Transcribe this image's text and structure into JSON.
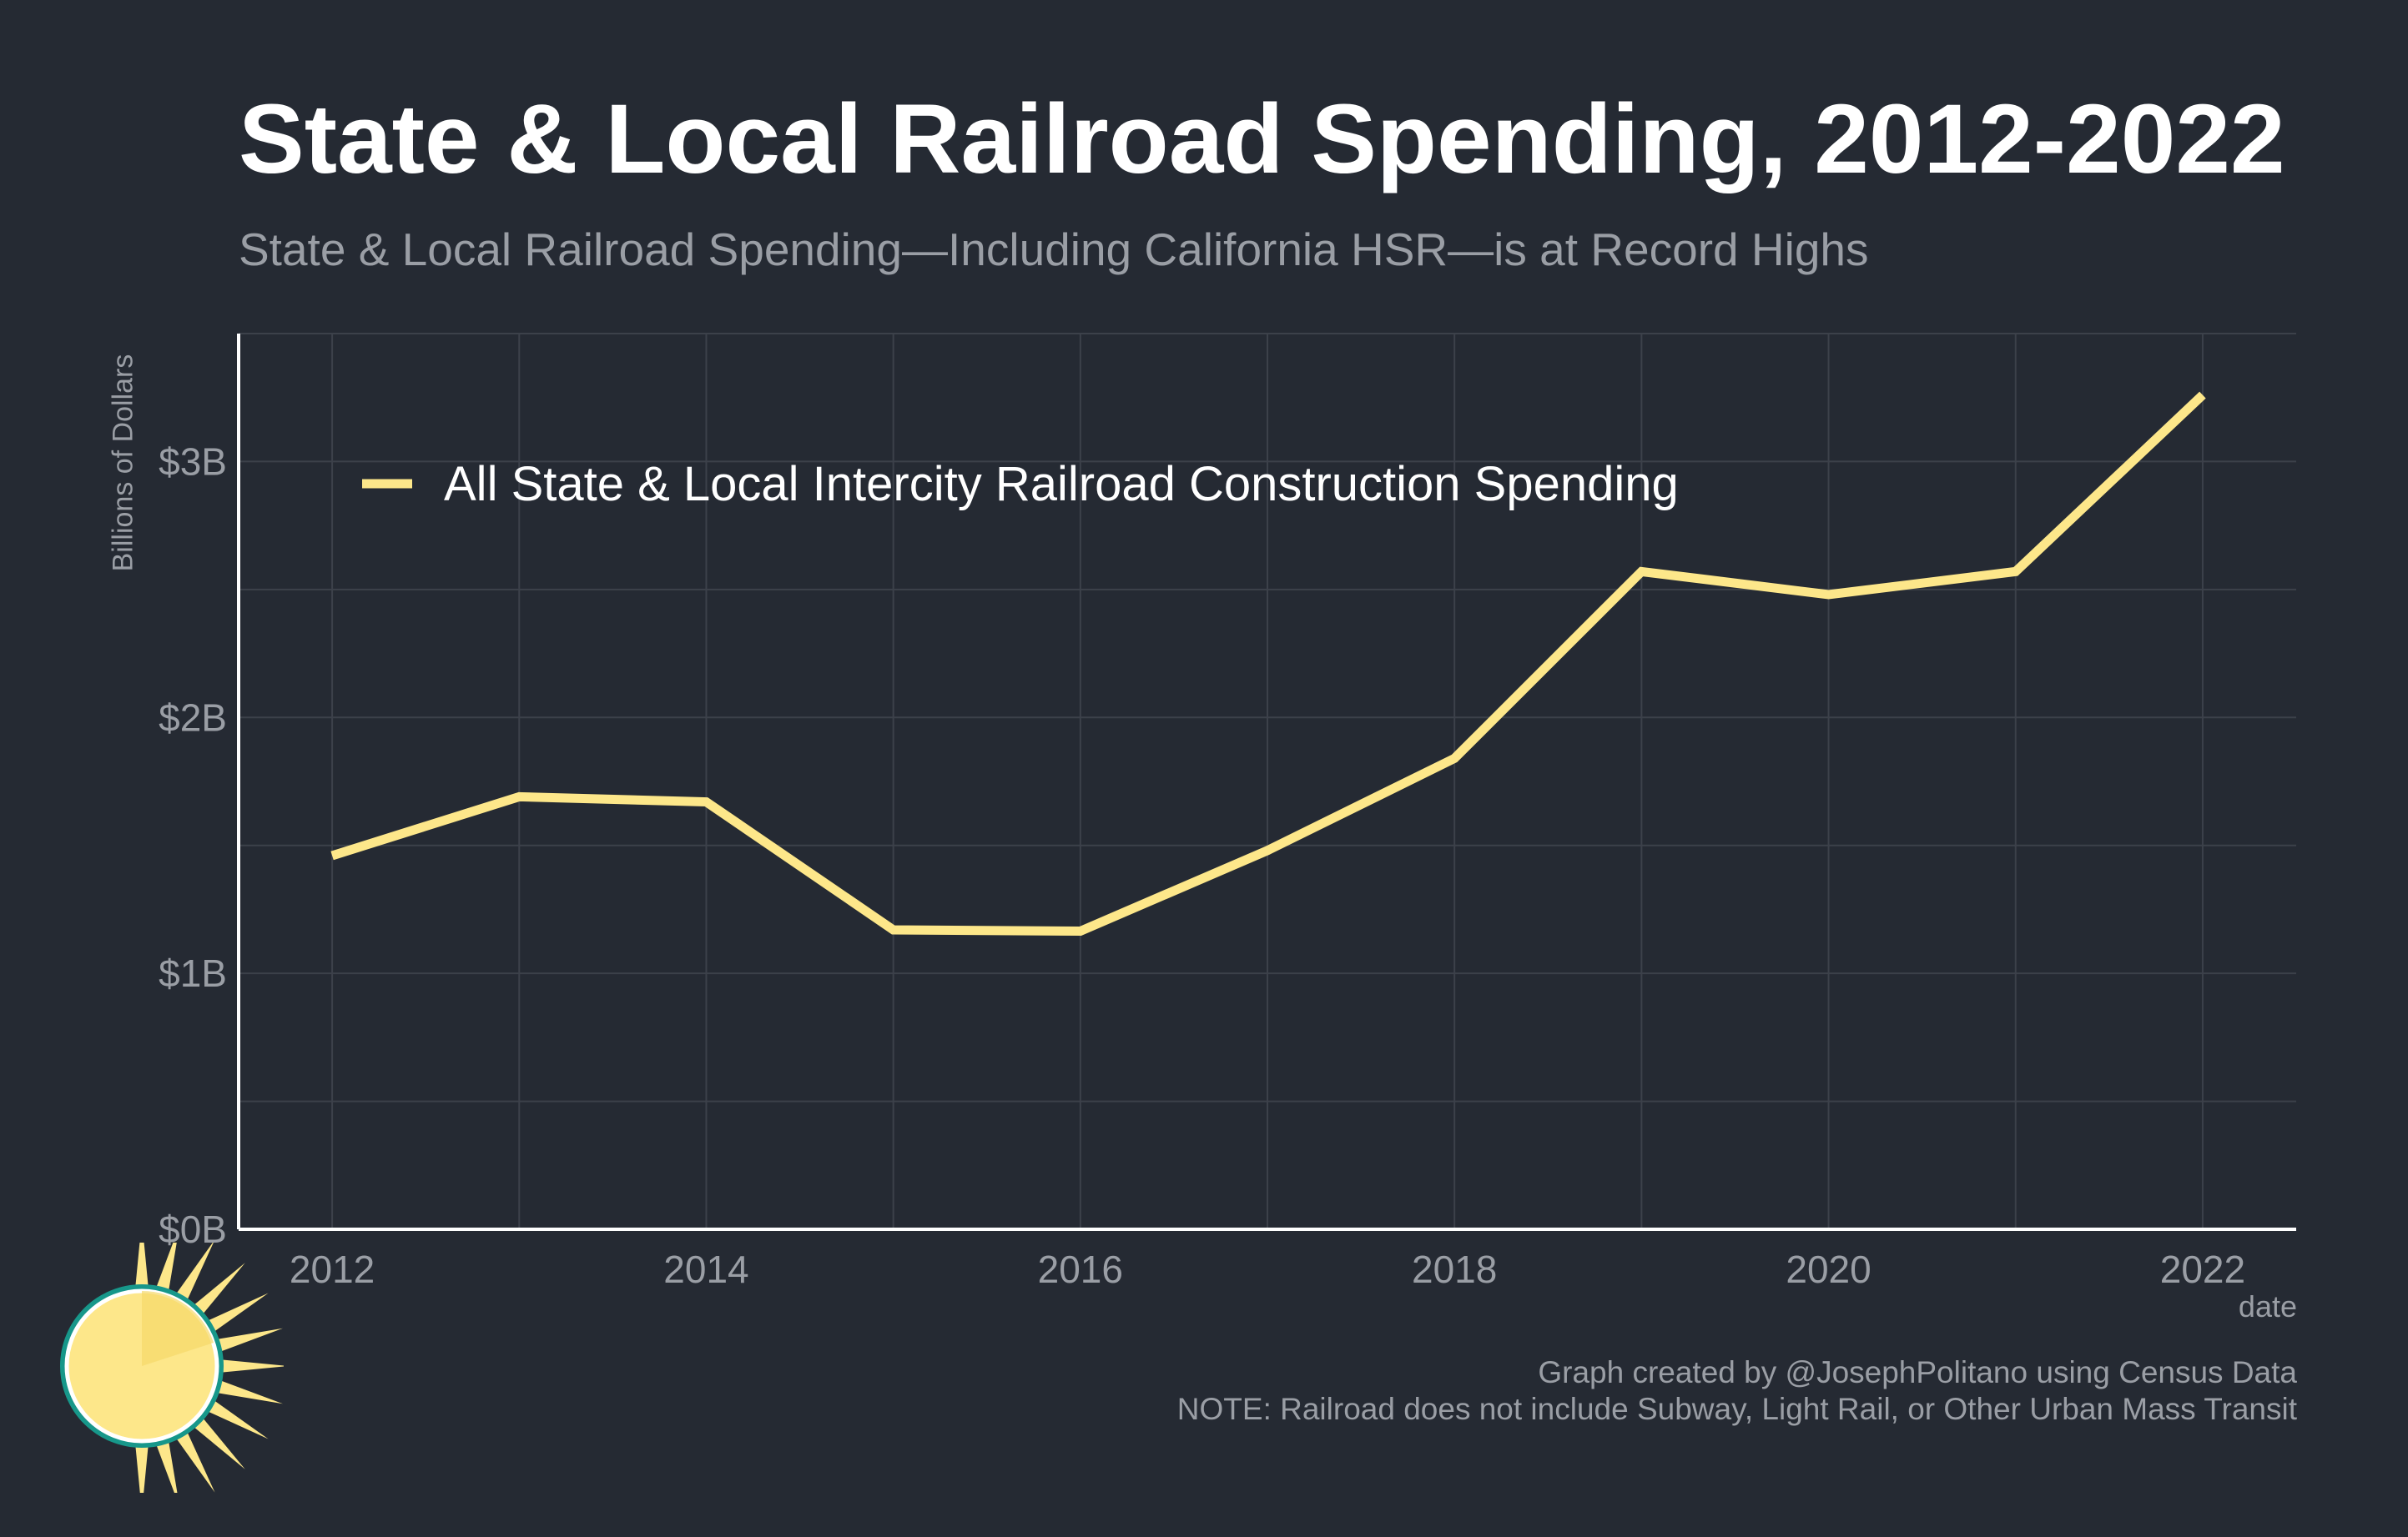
{
  "chart_data": {
    "type": "line",
    "title": "State & Local Railroad Spending, 2012-2022",
    "subtitle": "State & Local Railroad Spending—Including California HSR—is at Record Highs",
    "xlabel": "date",
    "ylabel": "Billions of Dollars",
    "x": [
      2012,
      2013,
      2014,
      2015,
      2016,
      2017,
      2018,
      2019,
      2020,
      2021,
      2022
    ],
    "x_ticks": [
      2012,
      2014,
      2016,
      2018,
      2020,
      2022
    ],
    "x_tick_labels": [
      "2012",
      "2014",
      "2016",
      "2018",
      "2020",
      "2022"
    ],
    "y_ticks": [
      0,
      1,
      2,
      3
    ],
    "y_tick_labels": [
      "$0B",
      "$1B",
      "$2B",
      "$3B"
    ],
    "xlim": [
      2011.5,
      2022.5
    ],
    "ylim": [
      0,
      3.5
    ],
    "grid": true,
    "legend_position": "top-left",
    "series": [
      {
        "name": "All State & Local Intercity Railroad Construction Spending",
        "color": "#fde78a",
        "values": [
          1.46,
          1.69,
          1.67,
          1.17,
          1.165,
          1.48,
          1.84,
          2.57,
          2.48,
          2.57,
          3.26
        ]
      }
    ]
  },
  "footer": {
    "credit": "Graph created by @JosephPolitano using Census Data",
    "note": "NOTE: Railroad does not include Subway, Light Rail, or Other Urban Mass Transit"
  },
  "colors": {
    "background": "#252a33",
    "grid": "#3c414a",
    "axis": "#ffffff",
    "muted_text": "#9a9ea5",
    "line": "#fde78a",
    "logo_ring": "#17978a",
    "logo_sun": "#fde78a"
  },
  "logo": {
    "icon": "sun-logo-icon"
  }
}
